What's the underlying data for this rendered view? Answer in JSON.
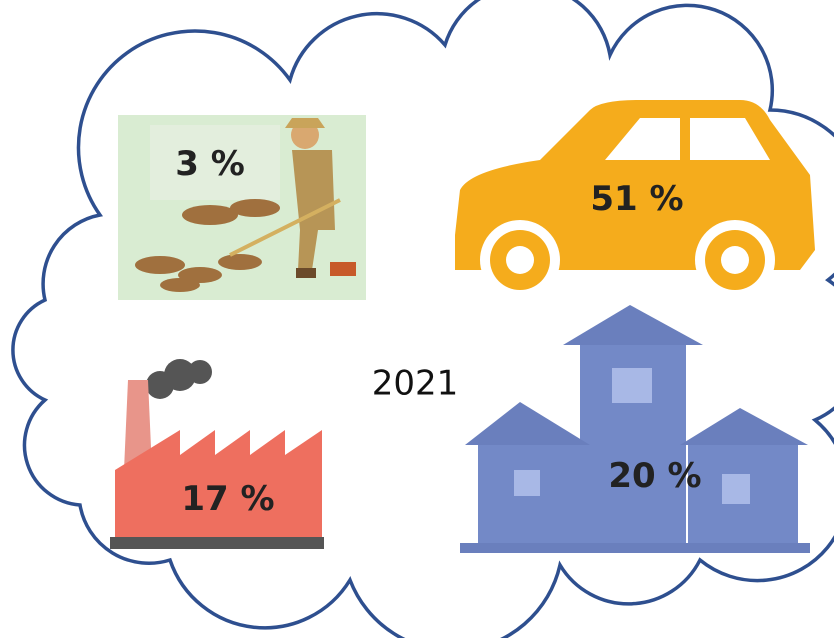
{
  "center_label": "2021",
  "items": [
    {
      "name": "agriculture",
      "label": "3 %"
    },
    {
      "name": "transport",
      "label": "51 %"
    },
    {
      "name": "industry",
      "label": "17 %"
    },
    {
      "name": "buildings",
      "label": "20 %"
    }
  ]
}
